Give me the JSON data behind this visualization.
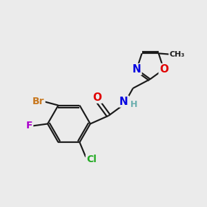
{
  "bg_color": "#ebebeb",
  "bond_color": "#1a1a1a",
  "bond_width": 1.6,
  "atom_colors": {
    "C": "#1a1a1a",
    "H": "#6aaeae",
    "N": "#0000e0",
    "O": "#e00000",
    "Br": "#c87820",
    "F": "#aa00cc",
    "Cl": "#22aa22"
  },
  "font_size": 10,
  "title": ""
}
